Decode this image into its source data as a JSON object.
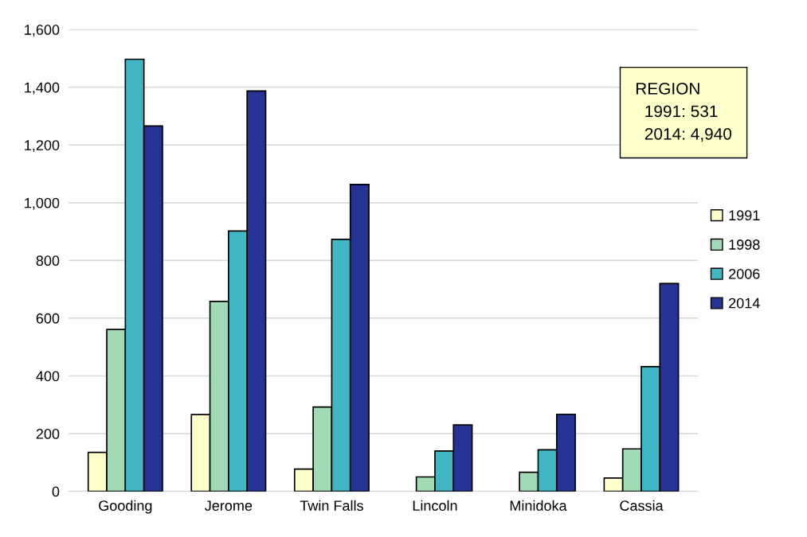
{
  "chart_data": {
    "type": "bar",
    "categories": [
      "Gooding",
      "Jerome",
      "Twin Falls",
      "Lincoln",
      "Minidoka",
      "Cassia"
    ],
    "series": [
      {
        "name": "1991",
        "color": "#ffffcc",
        "values": [
          135,
          266,
          77,
          null,
          null,
          46
        ]
      },
      {
        "name": "1998",
        "color": "#a1dab4",
        "values": [
          561,
          658,
          292,
          50,
          66,
          147
        ]
      },
      {
        "name": "2006",
        "color": "#41b6c4",
        "values": [
          1497,
          902,
          873,
          140,
          144,
          432
        ]
      },
      {
        "name": "2014",
        "color": "#253494",
        "values": [
          1266,
          1387,
          1063,
          230,
          267,
          720
        ]
      }
    ],
    "ylim": [
      0,
      1600
    ],
    "yticks": [
      0,
      {
        "value": 200,
        "label": "200"
      },
      {
        "value": 400,
        "label": "400"
      },
      {
        "value": 600,
        "label": "600"
      },
      {
        "value": 800,
        "label": "800"
      },
      {
        "value": 1000,
        "label": "1,000"
      },
      {
        "value": 1200,
        "label": "1,200"
      },
      {
        "value": 1400,
        "label": "1,400"
      },
      {
        "value": 1600,
        "label": "1,600"
      }
    ],
    "grid": "y",
    "legend": "right",
    "annotations": [
      "REGION\n  1991: 531\n  2014: 4,940"
    ]
  }
}
